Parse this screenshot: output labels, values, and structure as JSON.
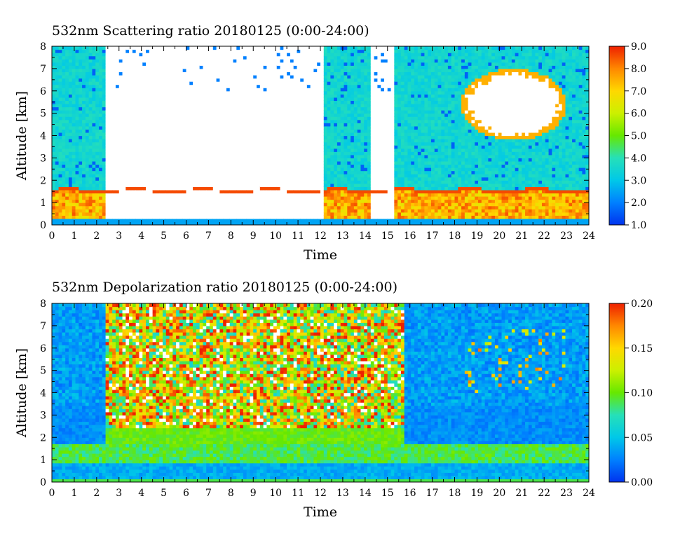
{
  "chart_data": [
    {
      "type": "heatmap",
      "title": "532nm Scattering ratio  20180125 (0:00-24:00)",
      "xlabel": "Time",
      "ylabel": "Altitude [km]",
      "xlim": [
        0,
        24
      ],
      "ylim": [
        0,
        8
      ],
      "xticks": [
        "0",
        "1",
        "2",
        "3",
        "4",
        "5",
        "6",
        "7",
        "8",
        "9",
        "10",
        "11",
        "12",
        "13",
        "14",
        "15",
        "16",
        "17",
        "18",
        "19",
        "20",
        "21",
        "22",
        "23",
        "24"
      ],
      "yticks": [
        "0",
        "1",
        "2",
        "3",
        "4",
        "5",
        "6",
        "7",
        "8"
      ],
      "colorbar": {
        "min": 1.0,
        "max": 9.0,
        "ticks": [
          "1.0",
          "2.0",
          "3.0",
          "4.0",
          "5.0",
          "6.0",
          "7.0",
          "8.0",
          "9.0"
        ]
      },
      "features": {
        "boundary_layer_top_km": 1.6,
        "boundary_layer_value": 8.5,
        "background_value": 3.5,
        "saturated_cloud_intervals_h": [
          [
            2.4,
            12.2
          ],
          [
            14.2,
            15.3
          ]
        ],
        "upper_cloud_region": {
          "x": [
            18.3,
            23
          ],
          "y": [
            3.8,
            7.0
          ]
        }
      }
    },
    {
      "type": "heatmap",
      "title": "532nm Depolarization ratio  20180125 (0:00-24:00)",
      "xlabel": "Time",
      "ylabel": "Altitude [km]",
      "xlim": [
        0,
        24
      ],
      "ylim": [
        0,
        8
      ],
      "xticks": [
        "0",
        "1",
        "2",
        "3",
        "4",
        "5",
        "6",
        "7",
        "8",
        "9",
        "10",
        "11",
        "12",
        "13",
        "14",
        "15",
        "16",
        "17",
        "18",
        "19",
        "20",
        "21",
        "22",
        "23",
        "24"
      ],
      "yticks": [
        "0",
        "1",
        "2",
        "3",
        "4",
        "5",
        "6",
        "7",
        "8"
      ],
      "colorbar": {
        "min": 0.0,
        "max": 0.2,
        "ticks": [
          "0.00",
          "0.05",
          "0.10",
          "0.15",
          "0.20"
        ]
      },
      "features": {
        "noisy_high_interval_h": [
          2.4,
          15.8
        ],
        "low_layer_value": 0.09,
        "background_value": 0.035
      }
    }
  ],
  "colormap": [
    "#0033ee",
    "#0080ff",
    "#00c8e8",
    "#26e0b8",
    "#66e800",
    "#ccf000",
    "#ffd800",
    "#ff8800",
    "#ee2000"
  ]
}
